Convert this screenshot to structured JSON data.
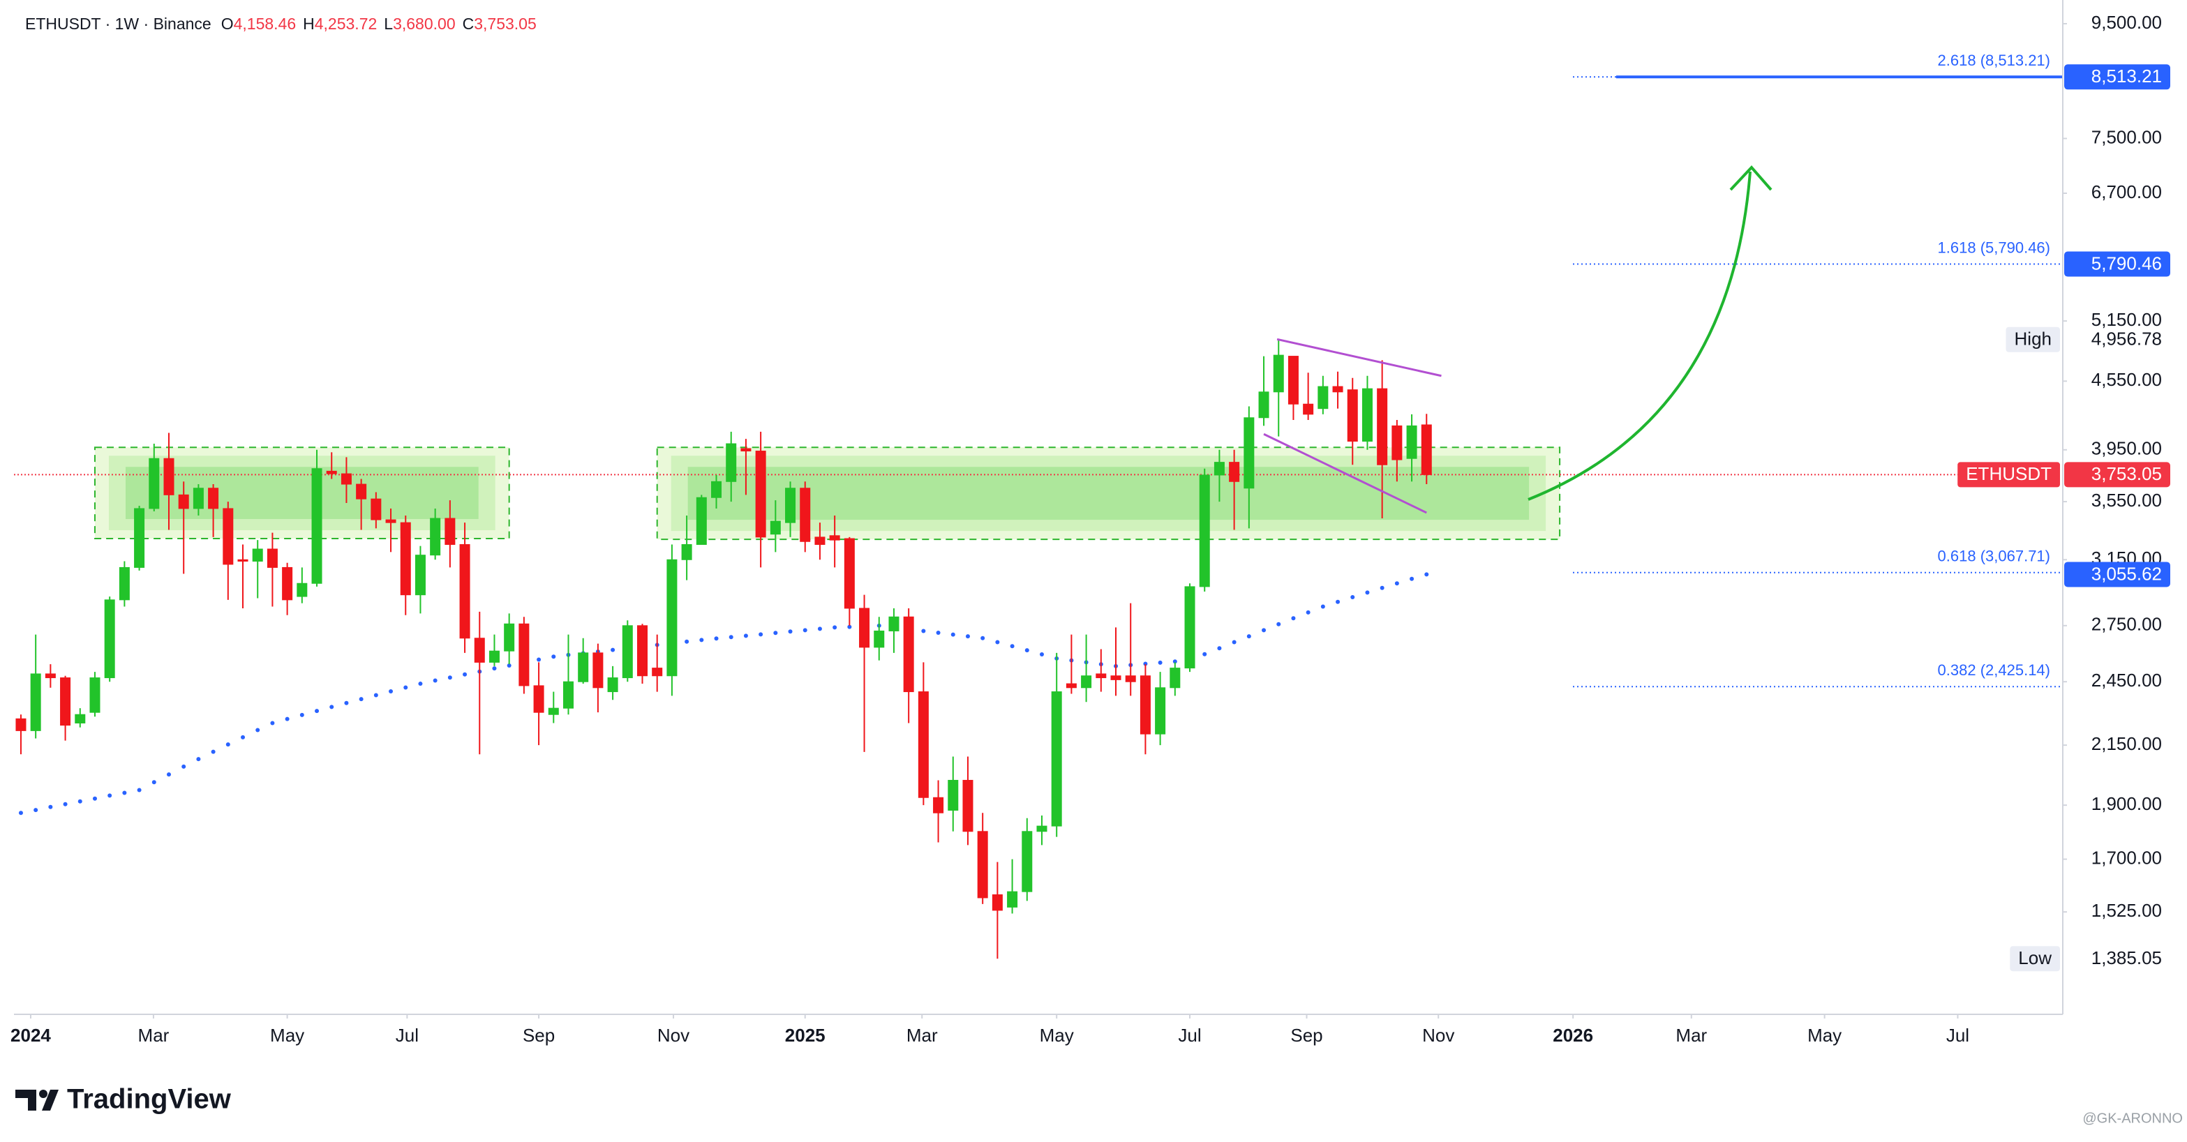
{
  "chart_data": {
    "type": "candlestick",
    "title": "ETHUSDT · 1W · Binance",
    "ohlc_legend": [
      {
        "letter": "O",
        "value": 4158.46,
        "label": "4,158.46"
      },
      {
        "letter": "H",
        "value": 4253.72,
        "label": "4,253.72"
      },
      {
        "letter": "L",
        "value": 3680.0,
        "label": "3,680.00"
      },
      {
        "letter": "C",
        "value": 3753.05,
        "label": "3,753.05"
      }
    ],
    "categories": [
      null,
      null,
      null,
      null,
      null,
      null,
      null,
      null,
      null,
      null,
      null,
      null,
      null,
      null,
      null,
      null,
      null,
      null,
      null,
      null,
      null,
      null,
      null,
      null,
      null,
      null,
      null,
      null,
      null,
      null,
      null,
      null,
      null,
      null,
      null,
      null,
      null,
      null,
      null,
      null,
      null,
      null,
      null,
      null,
      null,
      null,
      null,
      null,
      null,
      null,
      null,
      null,
      null,
      null,
      null,
      null,
      null,
      null,
      null,
      null,
      null,
      null,
      null,
      null,
      null,
      null,
      null,
      null,
      null,
      null,
      null,
      null,
      null,
      null,
      null,
      null,
      null,
      null,
      null,
      null,
      null,
      null,
      null,
      null,
      null,
      null,
      null,
      null,
      null,
      null,
      null,
      null,
      null,
      null,
      null,
      null
    ],
    "open": [
      2270,
      2215,
      2490,
      2470,
      2250,
      2300,
      2470,
      2900,
      3100,
      3500,
      3880,
      3600,
      3500,
      3650,
      3500,
      3150,
      3140,
      3220,
      3100,
      2920,
      3000,
      3780,
      3760,
      3680,
      3570,
      3420,
      3400,
      2930,
      3180,
      3430,
      3250,
      2680,
      2550,
      2610,
      2760,
      2430,
      2290,
      2320,
      2450,
      2600,
      2400,
      2470,
      2750,
      2520,
      2480,
      3150,
      3250,
      3580,
      3700,
      3960,
      3940,
      3320,
      3400,
      3650,
      3300,
      3310,
      3290,
      2850,
      2630,
      2720,
      2800,
      2400,
      1930,
      1880,
      2000,
      1800,
      1580,
      1540,
      1590,
      1800,
      1820,
      2440,
      2420,
      2490,
      2480,
      2480,
      2480,
      2200,
      2420,
      2520,
      2980,
      3750,
      3850,
      3650,
      4220,
      4450,
      4790,
      4340,
      4300,
      4500,
      4470,
      4020,
      4480,
      4150,
      3880,
      4158.46
    ],
    "high": [
      2290,
      2700,
      2540,
      2480,
      2320,
      2500,
      2920,
      3140,
      3520,
      4000,
      4090,
      3700,
      3680,
      3680,
      3550,
      3250,
      3280,
      3330,
      3130,
      3100,
      3950,
      3930,
      3890,
      3720,
      3620,
      3500,
      3450,
      3240,
      3500,
      3560,
      3400,
      2830,
      2700,
      2820,
      2800,
      2550,
      2400,
      2700,
      2680,
      2650,
      2530,
      2780,
      2760,
      2700,
      3250,
      3450,
      3600,
      3750,
      4100,
      4040,
      4100,
      3560,
      3700,
      3700,
      3400,
      3450,
      3300,
      2930,
      2800,
      2850,
      2850,
      2550,
      2000,
      2100,
      2100,
      1870,
      1690,
      1700,
      1850,
      1860,
      2600,
      2700,
      2700,
      2620,
      2740,
      2880,
      2540,
      2500,
      2550,
      3000,
      3800,
      3950,
      3950,
      4320,
      4790,
      4956.78,
      4790,
      4630,
      4600,
      4640,
      4580,
      4600,
      4750,
      4200,
      4250,
      4253.72
    ],
    "low": [
      2110,
      2180,
      2420,
      2170,
      2230,
      2280,
      2450,
      2860,
      3080,
      3480,
      3350,
      3060,
      3450,
      3300,
      2900,
      2850,
      2910,
      2860,
      2810,
      2880,
      2980,
      3720,
      3540,
      3350,
      3360,
      3200,
      2810,
      2820,
      3150,
      3100,
      2600,
      2110,
      2530,
      2540,
      2390,
      2150,
      2250,
      2290,
      2440,
      2300,
      2360,
      2450,
      2440,
      2400,
      2380,
      3020,
      3250,
      3500,
      3550,
      3600,
      3100,
      3200,
      3300,
      3200,
      3150,
      3100,
      2750,
      2120,
      2560,
      2600,
      2250,
      1900,
      1760,
      1800,
      1750,
      1550,
      1385.05,
      1520,
      1560,
      1750,
      1780,
      2390,
      2350,
      2400,
      2380,
      2380,
      2110,
      2150,
      2380,
      2500,
      2950,
      3550,
      3350,
      3360,
      4150,
      4060,
      4200,
      4200,
      4250,
      4300,
      3830,
      3950,
      3430,
      3700,
      3700,
      3680
    ],
    "close": [
      2215,
      2490,
      2470,
      2240,
      2290,
      2470,
      2900,
      3100,
      3500,
      3880,
      3600,
      3500,
      3650,
      3500,
      3120,
      3140,
      3220,
      3100,
      2900,
      3000,
      3800,
      3760,
      3680,
      3570,
      3420,
      3400,
      2930,
      3180,
      3430,
      3250,
      2680,
      2550,
      2610,
      2760,
      2430,
      2300,
      2320,
      2450,
      2600,
      2420,
      2470,
      2750,
      2480,
      2480,
      3150,
      3250,
      3580,
      3700,
      4000,
      3940,
      3300,
      3410,
      3650,
      3270,
      3250,
      3280,
      2850,
      2630,
      2720,
      2800,
      2400,
      1930,
      1870,
      2000,
      1800,
      1570,
      1530,
      1590,
      1800,
      1820,
      2400,
      2420,
      2480,
      2470,
      2460,
      2450,
      2200,
      2420,
      2520,
      2980,
      3750,
      3850,
      3700,
      4220,
      4450,
      4800,
      4340,
      4250,
      4500,
      4450,
      4020,
      4480,
      3830,
      3870,
      4150,
      3753.05
    ],
    "up_color": "#22c32a",
    "down_color": "#f0161b",
    "series": [
      {
        "color": "#2962ff",
        "values": [
          1870,
          1881,
          1893,
          1904,
          1915,
          1926,
          1938,
          1949,
          1960,
          1992,
          2024,
          2057,
          2089,
          2121,
          2153,
          2185,
          2218,
          2250,
          2269,
          2288,
          2307,
          2326,
          2345,
          2364,
          2383,
          2402,
          2421,
          2440,
          2456,
          2471,
          2487,
          2502,
          2518,
          2533,
          2549,
          2564,
          2580,
          2589,
          2598,
          2607,
          2616,
          2625,
          2634,
          2643,
          2652,
          2661,
          2670,
          2678,
          2686,
          2693,
          2701,
          2709,
          2717,
          2724,
          2732,
          2740,
          2743,
          2747,
          2750,
          2740,
          2730,
          2720,
          2710,
          2700,
          2690,
          2680,
          2658,
          2636,
          2614,
          2592,
          2570,
          2560,
          2550,
          2540,
          2530,
          2536,
          2542,
          2548,
          2554,
          2560,
          2593,
          2625,
          2658,
          2690,
          2724,
          2758,
          2792,
          2826,
          2860,
          2888,
          2916,
          2944,
          2972,
          3000,
          3028,
          3056
        ]
      }
    ],
    "log_scale": true,
    "grid": false,
    "ylim": [
      1235,
      9975
    ],
    "yticks": [
      {
        "value": 9500,
        "label": "9,500.00"
      },
      {
        "value": 7500,
        "label": "7,500.00"
      },
      {
        "value": 6700,
        "label": "6,700.00"
      },
      {
        "value": 5150,
        "label": "5,150.00"
      },
      {
        "value": 4550,
        "label": "4,550.00"
      },
      {
        "value": 3950,
        "label": "3,950.00"
      },
      {
        "value": 3550,
        "label": "3,550.00"
      },
      {
        "value": 3150,
        "label": "3,150.00"
      },
      {
        "value": 2750,
        "label": "2,750.00"
      },
      {
        "value": 2450,
        "label": "2,450.00"
      },
      {
        "value": 2150,
        "label": "2,150.00"
      },
      {
        "value": 1900,
        "label": "1,900.00"
      },
      {
        "value": 1700,
        "label": "1,700.00"
      },
      {
        "value": 1525,
        "label": "1,525.00"
      }
    ],
    "xlim": [
      -0.47,
      138
    ],
    "xticks": [
      {
        "value": 0.66,
        "label": "2024"
      },
      {
        "value": 8.96,
        "label": "Mar"
      },
      {
        "value": 18.0,
        "label": "May"
      },
      {
        "value": 26.1,
        "label": "Jul"
      },
      {
        "value": 35.0,
        "label": "Sep"
      },
      {
        "value": 44.1,
        "label": "Nov"
      },
      {
        "value": 53.0,
        "label": "2025"
      },
      {
        "value": 60.9,
        "label": "Mar"
      },
      {
        "value": 70.0,
        "label": "May"
      },
      {
        "value": 79.0,
        "label": "Jul"
      },
      {
        "value": 86.9,
        "label": "Sep"
      },
      {
        "value": 95.8,
        "label": "Nov"
      },
      {
        "value": 104.9,
        "label": "2026"
      },
      {
        "value": 112.9,
        "label": "Mar"
      },
      {
        "value": 121.9,
        "label": "May"
      },
      {
        "value": 130.9,
        "label": "Jul"
      }
    ],
    "fib_color": "#2962ff",
    "fib_levels": [
      {
        "value": 8513.21,
        "label": "2.618 (8,513.21)",
        "tag": "8,513.21",
        "solid": true
      },
      {
        "value": 5790.46,
        "label": "1.618 (5,790.46)",
        "tag": "5,790.46"
      },
      {
        "value": 3067.71,
        "label": "0.618 (3,067.71)"
      },
      {
        "value": 2425.14,
        "label": "0.382 (2,425.14)"
      }
    ],
    "price_tags": [
      {
        "title": "High",
        "value": 4956.78,
        "label": "4,956.78"
      },
      {
        "title": "ETHUSDT",
        "value": 3753.05,
        "label": "3,753.05",
        "color": "#f23645",
        "line": true
      },
      {
        "value": 3055.62,
        "label": "3,055.62",
        "color": "#2962ff"
      },
      {
        "title": "Low",
        "value": 1385.05,
        "label": "1,385.05"
      }
    ],
    "zone_color": "#2db52d",
    "zones": [
      {
        "x": [
          5.0,
          33.0
        ],
        "y": [
          3290,
          3970
        ]
      },
      {
        "x": [
          43.0,
          104.0
        ],
        "y": [
          3285,
          3970
        ]
      }
    ],
    "channel": {
      "color": "#b24fd1",
      "lines": [
        {
          "x": [
            84.9,
            96.0
          ],
          "y": [
            4960,
            4600
          ]
        },
        {
          "x": [
            84.0,
            95.0
          ],
          "y": [
            4080,
            3470
          ]
        }
      ]
    }
  },
  "brand": "TradingView",
  "watermark": "@GK-ARONNO"
}
